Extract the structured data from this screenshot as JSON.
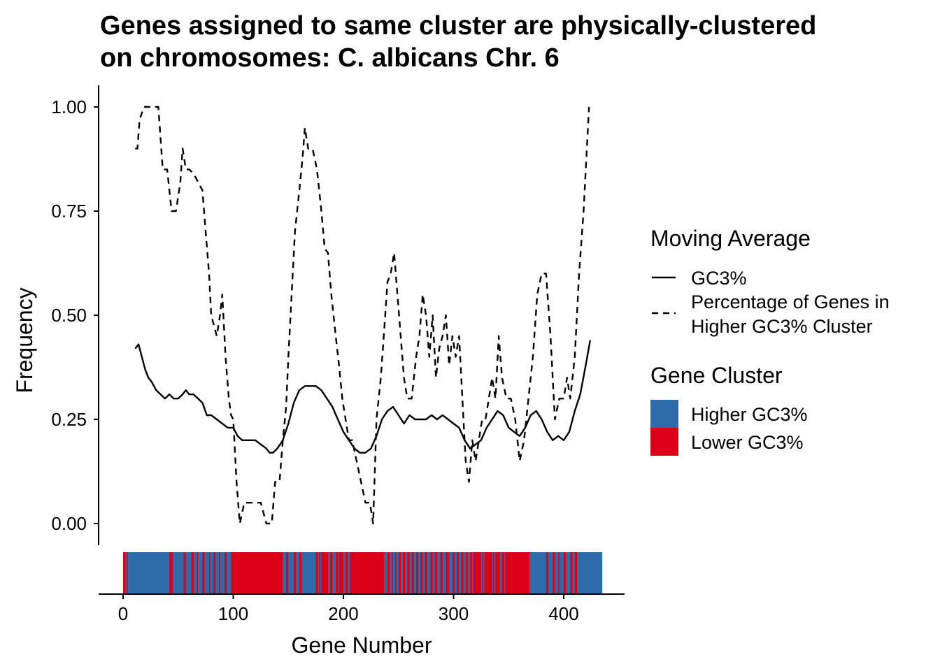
{
  "chart_data": {
    "type": "line",
    "title": "Genes assigned to same cluster are physically-clustered",
    "title_line2": "on chromosomes: C. albicans Chr. 6",
    "xlabel": "Gene Number",
    "ylabel": "Frequency",
    "xlim": [
      0,
      435
    ],
    "ylim": [
      -0.05,
      1.05
    ],
    "x_ticks": [
      0,
      100,
      200,
      300,
      400
    ],
    "x_tick_labels": [
      "0",
      "100",
      "200",
      "300",
      "400"
    ],
    "y_ticks": [
      0.0,
      0.25,
      0.5,
      0.75,
      1.0
    ],
    "y_tick_labels": [
      "0.00",
      "0.25",
      "0.50",
      "0.75",
      "1.00"
    ],
    "grid": false,
    "legend_position": "right",
    "legend_moving_average": {
      "title": "Moving Average",
      "items": [
        {
          "label": "GC3%",
          "linetype": "solid"
        },
        {
          "label_line1": "Percentage of Genes in",
          "label_line2": "Higher GC3% Cluster",
          "linetype": "dashed"
        }
      ]
    },
    "legend_gene_cluster": {
      "title": "Gene Cluster",
      "items": [
        {
          "label": "Higher GC3%",
          "color": "#2e6bab"
        },
        {
          "label": "Lower GC3%",
          "color": "#dc0019"
        }
      ]
    },
    "series": [
      {
        "name": "GC3%",
        "linetype": "solid",
        "x": [
          11,
          14,
          17,
          20,
          23,
          26,
          30,
          34,
          38,
          42,
          46,
          50,
          54,
          57,
          60,
          64,
          68,
          72,
          76,
          80,
          85,
          90,
          95,
          100,
          104,
          108,
          112,
          116,
          120,
          125,
          130,
          133,
          136,
          140,
          145,
          150,
          155,
          160,
          165,
          170,
          175,
          180,
          185,
          190,
          195,
          200,
          205,
          210,
          215,
          220,
          225,
          230,
          235,
          240,
          245,
          250,
          255,
          260,
          265,
          270,
          275,
          280,
          285,
          290,
          295,
          300,
          305,
          310,
          315,
          320,
          325,
          330,
          335,
          340,
          345,
          350,
          355,
          360,
          365,
          370,
          375,
          380,
          385,
          390,
          395,
          400,
          405,
          410,
          415,
          420,
          424
        ],
        "y": [
          0.42,
          0.43,
          0.4,
          0.37,
          0.35,
          0.34,
          0.32,
          0.31,
          0.3,
          0.31,
          0.3,
          0.3,
          0.31,
          0.32,
          0.31,
          0.31,
          0.3,
          0.29,
          0.26,
          0.26,
          0.25,
          0.24,
          0.23,
          0.23,
          0.21,
          0.2,
          0.2,
          0.2,
          0.2,
          0.19,
          0.18,
          0.17,
          0.17,
          0.18,
          0.2,
          0.24,
          0.29,
          0.32,
          0.33,
          0.33,
          0.33,
          0.32,
          0.3,
          0.28,
          0.25,
          0.22,
          0.2,
          0.18,
          0.17,
          0.17,
          0.18,
          0.21,
          0.25,
          0.27,
          0.28,
          0.26,
          0.24,
          0.26,
          0.25,
          0.25,
          0.25,
          0.26,
          0.25,
          0.26,
          0.25,
          0.24,
          0.23,
          0.2,
          0.18,
          0.19,
          0.2,
          0.23,
          0.25,
          0.27,
          0.26,
          0.23,
          0.22,
          0.21,
          0.23,
          0.26,
          0.27,
          0.25,
          0.22,
          0.2,
          0.21,
          0.2,
          0.22,
          0.27,
          0.31,
          0.38,
          0.44
        ]
      },
      {
        "name": "Percentage of Genes in Higher GC3% Cluster",
        "linetype": "dashed",
        "x": [
          11,
          13,
          15,
          19,
          22,
          28,
          32,
          36,
          40,
          44,
          48,
          52,
          54,
          57,
          60,
          64,
          68,
          72,
          75,
          78,
          80,
          85,
          88,
          90,
          93,
          96,
          98,
          100,
          103,
          106,
          110,
          115,
          120,
          125,
          130,
          135,
          138,
          142,
          145,
          148,
          150,
          153,
          156,
          160,
          163,
          165,
          168,
          172,
          176,
          180,
          183,
          186,
          189,
          193,
          196,
          199,
          202,
          205,
          208,
          212,
          216,
          220,
          224,
          227,
          230,
          234,
          238,
          240,
          243,
          246,
          249,
          252,
          255,
          258,
          262,
          266,
          269,
          272,
          275,
          278,
          281,
          284,
          287,
          290,
          293,
          296,
          299,
          302,
          305,
          308,
          311,
          314,
          317,
          320,
          323,
          326,
          329,
          332,
          335,
          338,
          341,
          344,
          348,
          352,
          356,
          360,
          364,
          368,
          372,
          376,
          380,
          384,
          388,
          392,
          396,
          400,
          403,
          406,
          410,
          414,
          418,
          420,
          423
        ],
        "y": [
          0.9,
          0.9,
          0.97,
          1.0,
          1.0,
          1.0,
          1.0,
          0.85,
          0.85,
          0.75,
          0.75,
          0.82,
          0.9,
          0.85,
          0.85,
          0.84,
          0.82,
          0.8,
          0.7,
          0.6,
          0.5,
          0.45,
          0.5,
          0.55,
          0.4,
          0.3,
          0.26,
          0.25,
          0.1,
          0.0,
          0.05,
          0.05,
          0.05,
          0.05,
          0.0,
          0.0,
          0.1,
          0.1,
          0.2,
          0.28,
          0.4,
          0.55,
          0.7,
          0.8,
          0.88,
          0.95,
          0.9,
          0.9,
          0.85,
          0.75,
          0.66,
          0.65,
          0.55,
          0.45,
          0.38,
          0.3,
          0.25,
          0.2,
          0.2,
          0.15,
          0.1,
          0.05,
          0.05,
          0.0,
          0.25,
          0.35,
          0.5,
          0.58,
          0.6,
          0.65,
          0.55,
          0.45,
          0.35,
          0.3,
          0.3,
          0.4,
          0.45,
          0.55,
          0.5,
          0.4,
          0.5,
          0.35,
          0.42,
          0.45,
          0.5,
          0.38,
          0.45,
          0.4,
          0.45,
          0.3,
          0.15,
          0.1,
          0.2,
          0.15,
          0.2,
          0.25,
          0.25,
          0.3,
          0.35,
          0.3,
          0.45,
          0.35,
          0.3,
          0.3,
          0.25,
          0.15,
          0.2,
          0.3,
          0.4,
          0.55,
          0.6,
          0.6,
          0.45,
          0.25,
          0.3,
          0.3,
          0.35,
          0.3,
          0.4,
          0.6,
          0.75,
          0.85,
          1.0
        ]
      }
    ],
    "gene_cluster_strip": {
      "range": [
        0,
        435
      ],
      "default_cluster": "Higher GC3%",
      "lower_gc3_segments": [
        [
          0,
          2
        ],
        [
          3,
          4
        ],
        [
          42,
          45
        ],
        [
          55,
          57
        ],
        [
          62,
          64
        ],
        [
          67,
          68
        ],
        [
          72,
          74
        ],
        [
          78,
          79
        ],
        [
          82,
          84
        ],
        [
          87,
          88
        ],
        [
          92,
          94
        ],
        [
          98,
          145
        ],
        [
          148,
          150
        ],
        [
          155,
          157
        ],
        [
          160,
          162
        ],
        [
          175,
          177
        ],
        [
          178,
          179
        ],
        [
          180,
          186
        ],
        [
          188,
          190
        ],
        [
          193,
          195
        ],
        [
          196,
          200
        ],
        [
          202,
          204
        ],
        [
          206,
          237
        ],
        [
          240,
          242
        ],
        [
          244,
          245
        ],
        [
          247,
          248
        ],
        [
          250,
          252
        ],
        [
          254,
          256
        ],
        [
          258,
          260
        ],
        [
          262,
          264
        ],
        [
          266,
          268
        ],
        [
          270,
          272
        ],
        [
          274,
          276
        ],
        [
          279,
          281
        ],
        [
          283,
          285
        ],
        [
          288,
          290
        ],
        [
          293,
          296
        ],
        [
          299,
          301
        ],
        [
          303,
          305
        ],
        [
          307,
          309
        ],
        [
          311,
          313
        ],
        [
          315,
          317
        ],
        [
          318,
          325
        ],
        [
          326,
          327
        ],
        [
          328,
          335
        ],
        [
          336,
          337
        ],
        [
          338,
          342
        ],
        [
          344,
          346
        ],
        [
          347,
          369
        ],
        [
          384,
          386
        ],
        [
          390,
          392
        ],
        [
          395,
          396
        ],
        [
          400,
          402
        ],
        [
          406,
          408
        ],
        [
          410,
          412
        ]
      ]
    }
  }
}
